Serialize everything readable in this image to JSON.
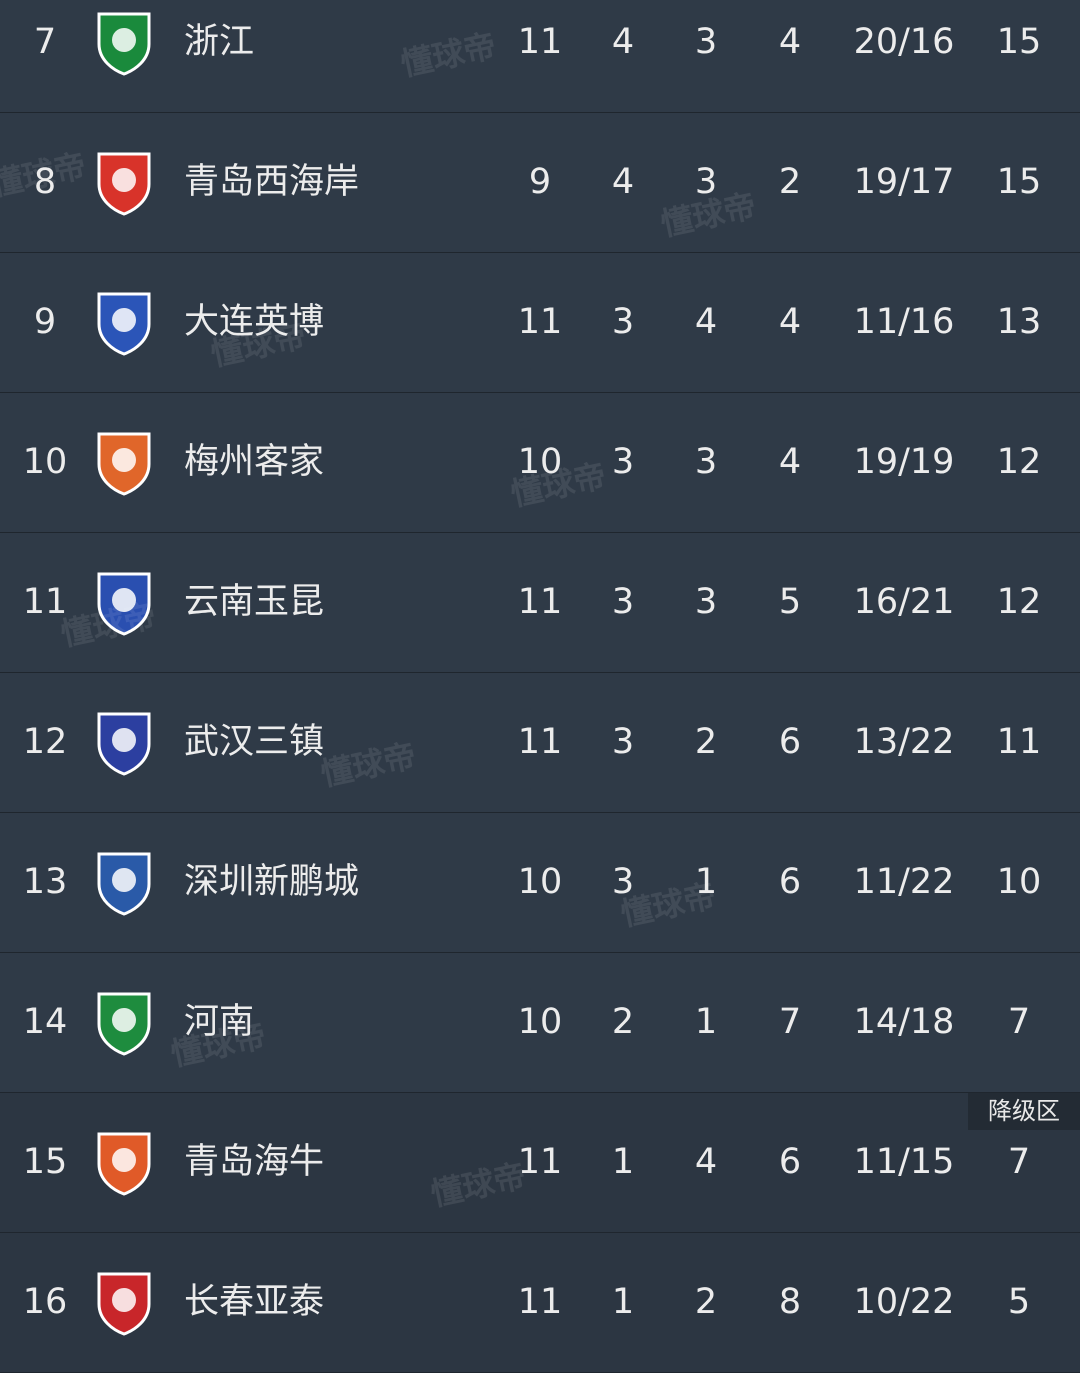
{
  "standings": {
    "rows": [
      {
        "rank": 7,
        "team": "浙江",
        "played": 11,
        "won": 4,
        "drawn": 3,
        "lost": 4,
        "goals": "20/16",
        "points": 15
      },
      {
        "rank": 8,
        "team": "青岛西海岸",
        "played": 9,
        "won": 4,
        "drawn": 3,
        "lost": 2,
        "goals": "19/17",
        "points": 15
      },
      {
        "rank": 9,
        "team": "大连英博",
        "played": 11,
        "won": 3,
        "drawn": 4,
        "lost": 4,
        "goals": "11/16",
        "points": 13
      },
      {
        "rank": 10,
        "team": "梅州客家",
        "played": 10,
        "won": 3,
        "drawn": 3,
        "lost": 4,
        "goals": "19/19",
        "points": 12
      },
      {
        "rank": 11,
        "team": "云南玉昆",
        "played": 11,
        "won": 3,
        "drawn": 3,
        "lost": 5,
        "goals": "16/21",
        "points": 12
      },
      {
        "rank": 12,
        "team": "武汉三镇",
        "played": 11,
        "won": 3,
        "drawn": 2,
        "lost": 6,
        "goals": "13/22",
        "points": 11
      },
      {
        "rank": 13,
        "team": "深圳新鹏城",
        "played": 10,
        "won": 3,
        "drawn": 1,
        "lost": 6,
        "goals": "11/22",
        "points": 10
      },
      {
        "rank": 14,
        "team": "河南",
        "played": 10,
        "won": 2,
        "drawn": 1,
        "lost": 7,
        "goals": "14/18",
        "points": 7
      },
      {
        "rank": 15,
        "team": "青岛海牛",
        "played": 11,
        "won": 1,
        "drawn": 4,
        "lost": 6,
        "goals": "11/15",
        "points": 7
      },
      {
        "rank": 16,
        "team": "长春亚泰",
        "played": 11,
        "won": 1,
        "drawn": 2,
        "lost": 8,
        "goals": "10/22",
        "points": 5
      }
    ],
    "relegation_label": "降级区",
    "watermark": "懂球帝"
  }
}
